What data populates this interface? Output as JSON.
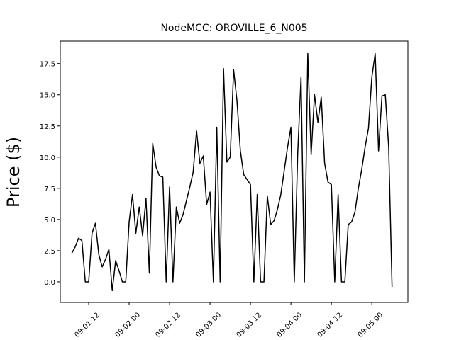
{
  "chart_data": {
    "type": "line",
    "title": "NodeMCC: OROVILLE_6_N005",
    "y_label": "Price ($)",
    "x": [
      7,
      8,
      9,
      10,
      11,
      12,
      13,
      14,
      15,
      16,
      17,
      18,
      19,
      20,
      21,
      22,
      23,
      24,
      25,
      26,
      27,
      28,
      29,
      30,
      31,
      32,
      33,
      34,
      35,
      36,
      37,
      38,
      39,
      40,
      41,
      42,
      43,
      44,
      45,
      46,
      47,
      48,
      49,
      50,
      51,
      52,
      53,
      54,
      55,
      56,
      57,
      58,
      59,
      60,
      61,
      62,
      63,
      64,
      65,
      66,
      67,
      68,
      69,
      70,
      71,
      72,
      73,
      74,
      75,
      76,
      77,
      78,
      79,
      80,
      81,
      82,
      83,
      84,
      85,
      86,
      87,
      88,
      89,
      90,
      91,
      92,
      93,
      94,
      95,
      96,
      97,
      98,
      99,
      100,
      101,
      102
    ],
    "series": [
      {
        "name": "Price",
        "color": "#000000",
        "values": [
          2.3,
          2.8,
          3.5,
          3.3,
          0,
          0,
          3.9,
          4.7,
          2.2,
          1.2,
          1.8,
          2.6,
          -0.7,
          1.7,
          0.9,
          0,
          0,
          4.8,
          7.0,
          3.9,
          6.0,
          3.7,
          6.7,
          0.7,
          11.1,
          9.2,
          8.5,
          8.4,
          0,
          7.6,
          0,
          6.0,
          4.7,
          5.4,
          6.5,
          7.6,
          8.8,
          12.1,
          9.5,
          10.1,
          6.2,
          7.2,
          0,
          12.4,
          0,
          17.1,
          9.6,
          10.0,
          17.0,
          14.5,
          10.5,
          8.6,
          8.2,
          7.8,
          0,
          7.0,
          0,
          0,
          6.9,
          4.6,
          4.9,
          5.8,
          7.0,
          8.9,
          10.8,
          12.4,
          0,
          10.2,
          16.4,
          0,
          18.3,
          10.2,
          15.0,
          12.8,
          14.8,
          9.5,
          8.0,
          7.8,
          0,
          7.0,
          0,
          0,
          4.6,
          4.8,
          5.6,
          7.5,
          9.0,
          10.8,
          12.3,
          16.4,
          18.3,
          10.5,
          14.9,
          15.0,
          10.8,
          -0.4
        ]
      }
    ],
    "xlim": [
      3.58,
      106.7
    ],
    "xticks": [
      {
        "value": 12,
        "label": "09-01 12"
      },
      {
        "value": 24,
        "label": "09-02 00"
      },
      {
        "value": 36,
        "label": "09-02 12"
      },
      {
        "value": 48,
        "label": "09-03 00"
      },
      {
        "value": 60,
        "label": "09-03 12"
      },
      {
        "value": 72,
        "label": "09-04 00"
      },
      {
        "value": 84,
        "label": "09-04 12"
      },
      {
        "value": 96,
        "label": "09-05 00"
      }
    ],
    "ylim": [
      -1.65,
      19.3
    ],
    "yticks": [
      {
        "value": 0,
        "label": "0.0"
      },
      2.5,
      {
        "value": 5,
        "label": "5.0"
      },
      7.5,
      {
        "value": 10,
        "label": "10.0"
      },
      12.5,
      {
        "value": 15,
        "label": "15.0"
      },
      17.5
    ],
    "grid": false
  }
}
